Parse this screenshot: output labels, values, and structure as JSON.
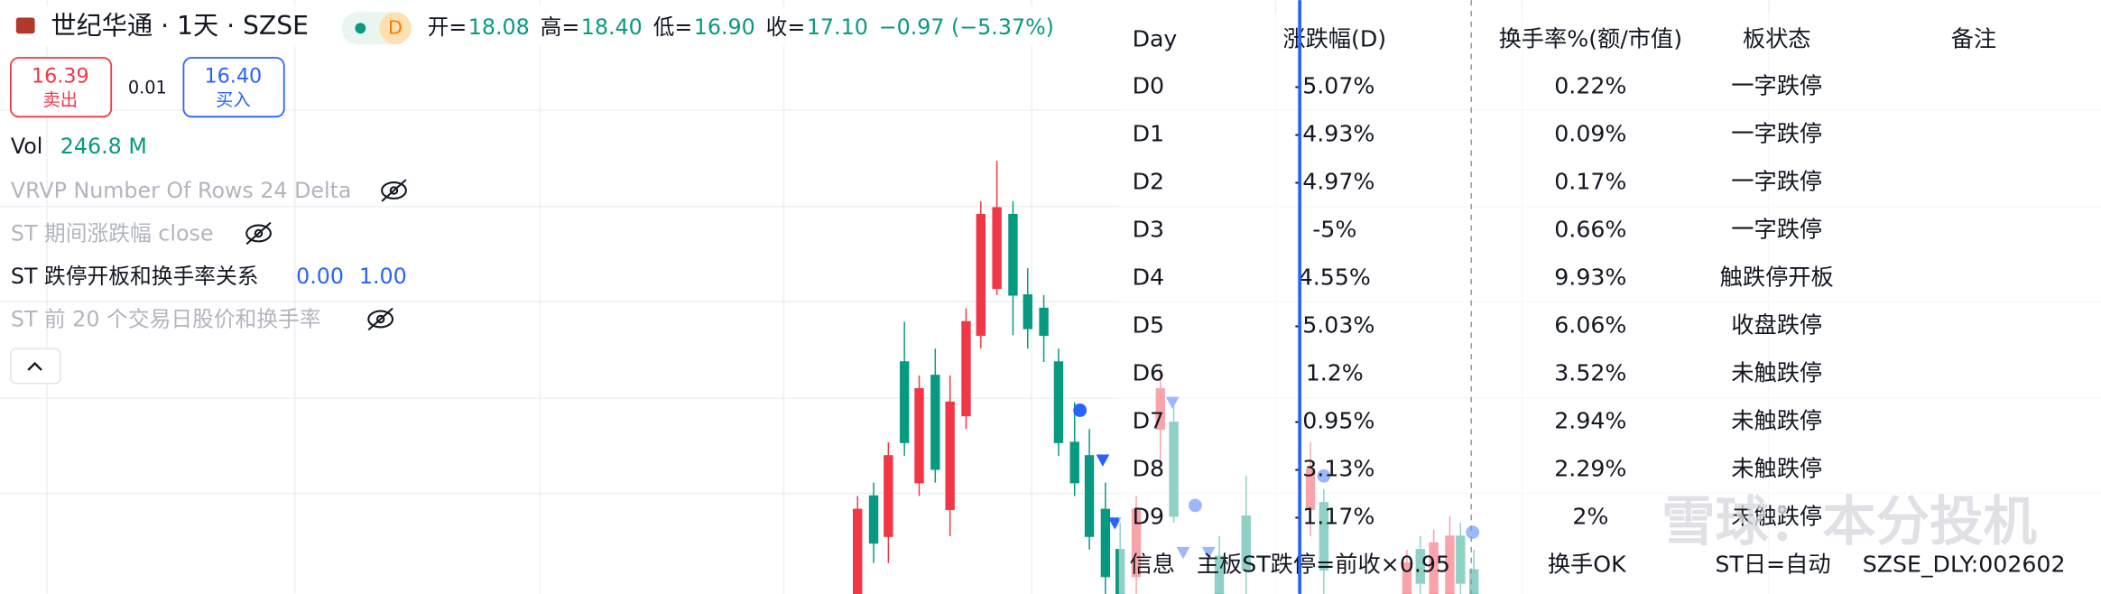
{
  "header": {
    "symbol": "世纪华通 · 1天 · SZSE",
    "badge": "D",
    "ohlc": [
      {
        "label": "开=",
        "value": "18.08"
      },
      {
        "label": "高=",
        "value": "18.40"
      },
      {
        "label": "低=",
        "value": "16.90"
      },
      {
        "label": "收=",
        "value": "17.10"
      }
    ],
    "change": "−0.97 (−5.37%)"
  },
  "order": {
    "sell_price": "16.39",
    "sell_label": "卖出",
    "spread": "0.01",
    "buy_price": "16.40",
    "buy_label": "买入"
  },
  "indicators": {
    "vol_label": "Vol",
    "vol_value": "246.8 M",
    "vrvp": "VRVP Number Of Rows 24 Delta",
    "st_change": "ST 期间涨跌幅 close",
    "st_limit": "ST 跌停开板和换手率关系",
    "st_limit_values": [
      "0.00",
      "1.00"
    ],
    "st_prev": "ST 前 20 个交易日股价和换手率"
  },
  "table": {
    "headers": [
      "Day",
      "涨跌幅(D)",
      "换手率%(额/市值)",
      "板状态",
      "备注"
    ],
    "rows": [
      [
        "D0",
        "-5.07%",
        "0.22%",
        "一字跌停"
      ],
      [
        "D1",
        "-4.93%",
        "0.09%",
        "一字跌停"
      ],
      [
        "D2",
        "-4.97%",
        "0.17%",
        "一字跌停"
      ],
      [
        "D3",
        "-5%",
        "0.66%",
        "一字跌停"
      ],
      [
        "D4",
        "4.55%",
        "9.93%",
        "触跌停开板"
      ],
      [
        "D5",
        "-5.03%",
        "6.06%",
        "收盘跌停"
      ],
      [
        "D6",
        "1.2%",
        "3.52%",
        "未触跌停"
      ],
      [
        "D7",
        "-0.95%",
        "2.94%",
        "未触跌停"
      ],
      [
        "D8",
        "-3.13%",
        "2.29%",
        "未触跌停"
      ],
      [
        "D9",
        "-1.17%",
        "2%",
        "未触跌停"
      ]
    ],
    "footer": [
      "信息",
      "主板ST跌停=前收×0.95",
      "换手OK",
      "ST日=自动",
      "SZSE_DLY:002602"
    ]
  },
  "watermark": "雪球：本分投机"
}
